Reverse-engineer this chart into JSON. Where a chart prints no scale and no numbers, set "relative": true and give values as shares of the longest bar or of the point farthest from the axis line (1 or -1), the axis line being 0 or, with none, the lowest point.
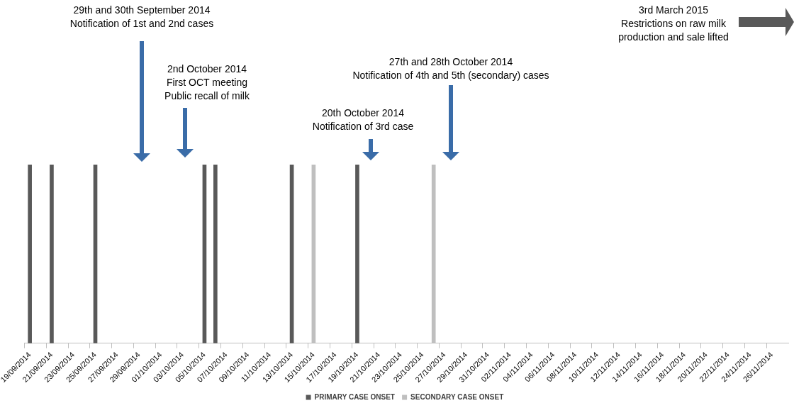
{
  "chart_data": {
    "type": "bar",
    "stacked": true,
    "relative": true,
    "grid": false,
    "legend": "bottom",
    "categories": [
      "19/09/2014",
      null,
      "21/09/2014",
      null,
      "23/09/2014",
      null,
      "25/09/2014",
      null,
      "27/09/2014",
      null,
      "29/09/2014",
      null,
      "01/10/2014",
      null,
      "03/10/2014",
      null,
      "05/10/2014",
      null,
      "07/10/2014",
      null,
      "09/10/2014",
      null,
      "11/10/2014",
      null,
      "13/10/2014",
      null,
      "15/10/2014",
      null,
      "17/10/2014",
      null,
      "19/10/2014",
      null,
      "21/10/2014",
      null,
      "23/10/2014",
      null,
      "25/10/2014",
      null,
      "27/10/2014",
      null,
      "29/10/2014",
      null,
      "31/10/2014",
      null,
      "02/11/2014",
      null,
      "04/11/2014",
      null,
      "06/11/2014",
      null,
      "08/11/2014",
      null,
      "10/11/2014",
      null,
      "12/11/2014",
      null,
      "14/11/2014",
      null,
      "16/11/2014",
      null,
      "18/11/2014",
      null,
      "20/11/2014",
      null,
      "22/11/2014",
      null,
      "24/11/2014",
      null,
      "26/11/2014",
      null
    ],
    "series": [
      {
        "name": "PRIMARY CASE ONSET",
        "color": "#595959",
        "values": [
          1,
          null,
          1,
          null,
          null,
          null,
          1,
          null,
          null,
          null,
          null,
          null,
          null,
          null,
          null,
          null,
          1,
          1,
          null,
          null,
          null,
          null,
          null,
          null,
          1,
          null,
          null,
          null,
          null,
          null,
          1,
          null,
          null,
          null,
          null,
          null,
          null,
          null,
          null,
          null,
          null,
          null,
          null,
          null,
          null,
          null,
          null,
          null,
          null,
          null,
          null,
          null,
          null,
          null,
          null,
          null,
          null,
          null,
          null,
          null,
          null,
          null,
          null,
          null,
          null,
          null,
          null,
          null,
          null,
          null
        ]
      },
      {
        "name": "SECONDARY CASE ONSET",
        "color": "#bfbfbf",
        "values": [
          null,
          null,
          null,
          null,
          null,
          null,
          null,
          null,
          null,
          null,
          null,
          null,
          null,
          null,
          null,
          null,
          null,
          null,
          null,
          null,
          null,
          null,
          null,
          null,
          null,
          null,
          1,
          null,
          null,
          null,
          null,
          null,
          null,
          null,
          null,
          null,
          null,
          1,
          null,
          null,
          null,
          null,
          null,
          null,
          null,
          null,
          null,
          null,
          null,
          null,
          null,
          null,
          null,
          null,
          null,
          null,
          null,
          null,
          null,
          null,
          null,
          null,
          null,
          null,
          null,
          null,
          null,
          null,
          null,
          null
        ]
      }
    ],
    "annotations": [
      "29th and 30th September 2014\nNotification of 1st and 2nd cases",
      "2nd October 2014\nFirst OCT meeting\nPublic recall of milk",
      "20th October 2014\nNotification of 3rd case",
      "27th and 28th October 2014\nNotification of 4th and 5th (secondary) cases",
      "3rd March 2015\nRestrictions on raw milk\nproduction and sale lifted"
    ]
  }
}
